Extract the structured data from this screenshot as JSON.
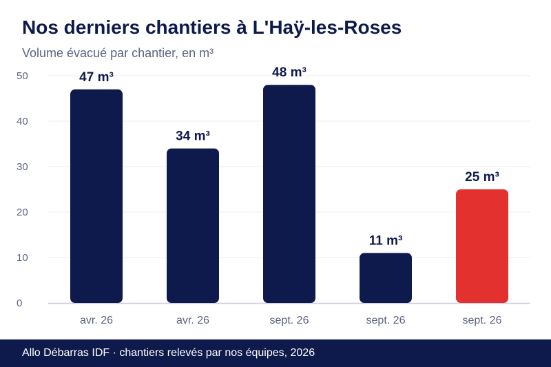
{
  "title": "Nos derniers chantiers à L'Haÿ-les-Roses",
  "subtitle": "Volume évacué par chantier, en m³",
  "footer": "Allo Débarras IDF · chantiers relevés par nos équipes, 2026",
  "chart_data": {
    "type": "bar",
    "categories": [
      "avr. 26",
      "avr. 26",
      "sept. 26",
      "sept. 26",
      "sept. 26"
    ],
    "values": [
      47,
      34,
      48,
      11,
      25
    ],
    "data_labels": [
      "47 m³",
      "34 m³",
      "48 m³",
      "11 m³",
      "25 m³"
    ],
    "ylim": [
      0,
      50
    ],
    "yticks": [
      0,
      10,
      20,
      30,
      40,
      50
    ],
    "grid": true,
    "colors": {
      "bar": "#0e1a4b",
      "highlight": "#e3312f",
      "grid": "#eeeeee",
      "axis": "#c9cbe0",
      "tick_text": "#5c6384"
    },
    "highlight_index": 4
  }
}
